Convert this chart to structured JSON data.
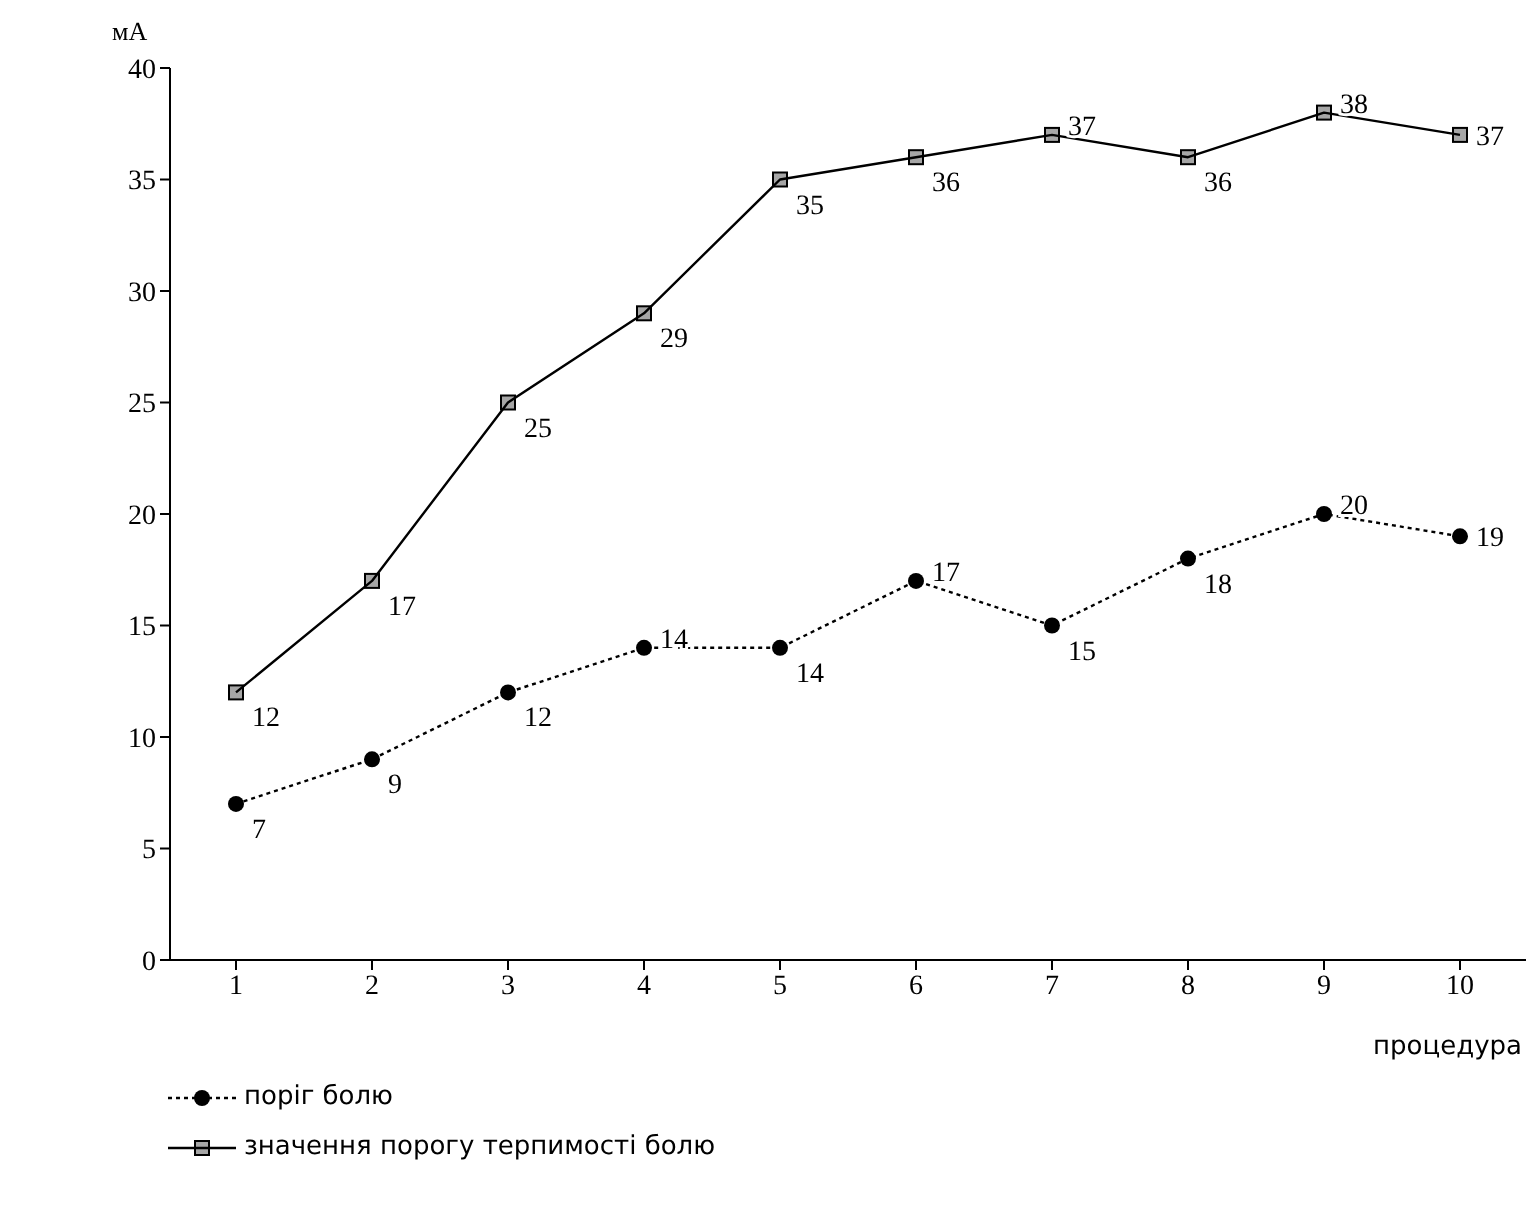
{
  "chart_data": {
    "type": "line",
    "ylabel": "мА",
    "xlabel": "процедура",
    "categories": [
      "1",
      "2",
      "3",
      "4",
      "5",
      "6",
      "7",
      "8",
      "9",
      "10"
    ],
    "series": [
      {
        "name": "поріг болю",
        "color": "#000000",
        "marker": "circle",
        "line_style": "dotted",
        "values": [
          7,
          9,
          12,
          14,
          14,
          17,
          15,
          18,
          20,
          19
        ]
      },
      {
        "name": "значення порогу терпимості болю",
        "color": "#000000",
        "marker": "square",
        "line_style": "solid",
        "values": [
          12,
          17,
          25,
          29,
          35,
          36,
          37,
          36,
          38,
          37
        ]
      }
    ],
    "ylim": [
      0,
      40
    ],
    "yticks": [
      0,
      5,
      10,
      15,
      20,
      25,
      30,
      35,
      40
    ],
    "grid": false,
    "data_labels": true,
    "legend": "bottom left"
  }
}
